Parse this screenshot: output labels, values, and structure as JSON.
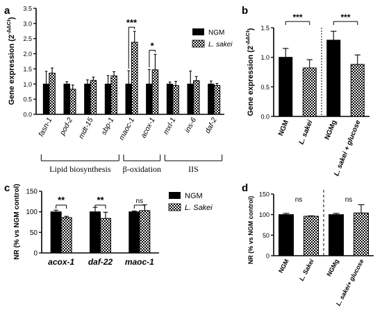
{
  "colors": {
    "primary": "#000000",
    "pattern_fill": "#ffffff",
    "pattern_ink": "#000000"
  },
  "panels": {
    "a": {
      "letter": "a",
      "legend": [
        "NGM",
        "L. sakei"
      ],
      "chart_data": {
        "type": "bar",
        "ylabel_prefix": "Gene expression (2",
        "ylabel_exp": "-ΔΔCt",
        "ylabel_suffix": ")",
        "ylim": [
          0,
          3.5
        ],
        "yticks": [
          "0.0",
          "0.5",
          "1.0",
          "1.5",
          "2.0",
          "2.5",
          "3.0",
          "3.5"
        ],
        "categories": [
          "fasn-1",
          "pod-2",
          "mdt-15",
          "sbp-1",
          "maoc-1",
          "acox-1",
          "mxl-1",
          "ins-6",
          "daf-2"
        ],
        "series": [
          {
            "name": "NGM",
            "values": [
              1.0,
              1.0,
              1.0,
              1.0,
              1.0,
              1.0,
              1.0,
              1.0,
              1.0
            ],
            "errors": [
              0.42,
              0.08,
              0.14,
              0.28,
              0.44,
              0.48,
              0.07,
              0.43,
              0.1
            ]
          },
          {
            "name": "L. sakei",
            "values": [
              1.36,
              0.83,
              1.12,
              1.27,
              2.38,
              1.47,
              0.95,
              1.11,
              0.95
            ],
            "errors": [
              0.17,
              0.14,
              0.11,
              0.14,
              0.36,
              0.51,
              0.14,
              0.14,
              0.07
            ]
          }
        ],
        "significance": [
          {
            "category_index": 4,
            "label": "***"
          },
          {
            "category_index": 5,
            "label": "*"
          }
        ],
        "groups": [
          {
            "label": "Lipid biosynthesis",
            "from": 0,
            "to": 3
          },
          {
            "label": "β-oxidation",
            "from": 4,
            "to": 5
          },
          {
            "label": "IIS",
            "from": 6,
            "to": 8
          }
        ]
      }
    },
    "b": {
      "letter": "b",
      "chart_data": {
        "type": "bar",
        "ylabel_prefix": "Gene expression (2",
        "ylabel_exp": "-ΔΔCt",
        "ylabel_suffix": ")",
        "ylim": [
          0,
          1.5
        ],
        "yticks": [
          "0.0",
          "0.5",
          "1.0",
          "1.5"
        ],
        "categories": [
          "NGM",
          "L. sakei",
          "NGMg",
          "L. sakei + glucose"
        ],
        "values": [
          1.0,
          0.82,
          1.29,
          0.88
        ],
        "errors": [
          0.15,
          0.14,
          0.15,
          0.16
        ],
        "patterned": [
          false,
          true,
          false,
          true
        ],
        "significance": [
          {
            "from": 0,
            "to": 1,
            "label": "***"
          },
          {
            "from": 2,
            "to": 3,
            "label": "***"
          }
        ],
        "divider_after": 1
      }
    },
    "c": {
      "letter": "c",
      "legend": [
        "NGM",
        "L. Sakei"
      ],
      "chart_data": {
        "type": "bar",
        "ylabel": "NR (% vs  NGM control)",
        "ylim": [
          0,
          150
        ],
        "yticks": [
          "0",
          "50",
          "100",
          "150"
        ],
        "categories": [
          "acox-1",
          "daf-22",
          "maoc-1"
        ],
        "series": [
          {
            "name": "NGM",
            "values": [
              100,
              100,
              100
            ],
            "errors": [
              4,
              11,
              2
            ]
          },
          {
            "name": "L. Sakei",
            "values": [
              86,
              84,
              103
            ],
            "errors": [
              3,
              15,
              14
            ]
          }
        ],
        "significance": [
          {
            "category_index": 0,
            "label": "**"
          },
          {
            "category_index": 1,
            "label": "**"
          },
          {
            "category_index": 2,
            "label": "ns"
          }
        ]
      }
    },
    "d": {
      "letter": "d",
      "chart_data": {
        "type": "bar",
        "ylabel": "NR (% vs NGM control)",
        "ylim": [
          0,
          150
        ],
        "yticks": [
          "0",
          "50",
          "100",
          "150"
        ],
        "categories": [
          "NGM",
          "L. Sakei",
          "NGMg",
          "L. sakei+ glucose"
        ],
        "values": [
          100,
          96,
          100,
          104
        ],
        "errors": [
          3,
          1,
          3,
          20
        ],
        "patterned": [
          false,
          true,
          false,
          true
        ],
        "significance": [
          {
            "from": 0,
            "to": 1,
            "label": "ns"
          },
          {
            "from": 2,
            "to": 3,
            "label": "ns"
          }
        ],
        "divider_after": 1
      }
    }
  }
}
